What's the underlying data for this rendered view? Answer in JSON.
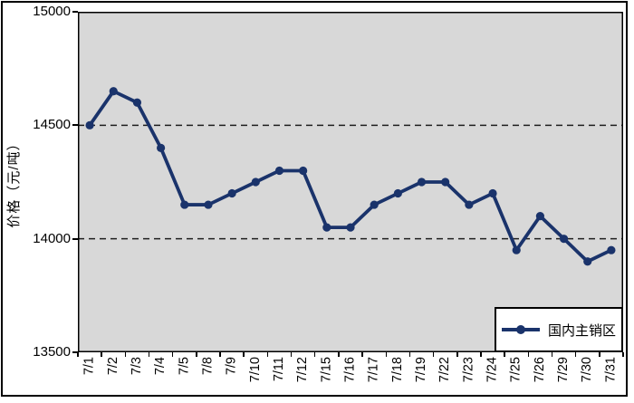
{
  "chart_data": {
    "type": "line",
    "ylabel": "价格（元/吨）",
    "xlabel": "",
    "categories": [
      "7/1",
      "7/2",
      "7/3",
      "7/4",
      "7/5",
      "7/8",
      "7/9",
      "7/10",
      "7/11",
      "7/12",
      "7/15",
      "7/16",
      "7/17",
      "7/18",
      "7/19",
      "7/22",
      "7/23",
      "7/24",
      "7/25",
      "7/26",
      "7/29",
      "7/30",
      "7/31"
    ],
    "series": [
      {
        "name": "国内主销区",
        "values": [
          14500,
          14650,
          14600,
          14400,
          14150,
          14150,
          14200,
          14250,
          14300,
          14300,
          14050,
          14050,
          14150,
          14200,
          14250,
          14250,
          14150,
          14200,
          13950,
          14100,
          14000,
          13900,
          13950
        ]
      }
    ],
    "ylim": [
      13500,
      15000
    ],
    "yticks": [
      13500,
      14000,
      14500,
      15000
    ],
    "gridlines_y": [
      14000,
      14500
    ],
    "grid": "dashed-horizontal",
    "legend": {
      "label": "国内主销区",
      "position": "inside-bottom-right",
      "marker": "filled-circle-on-line"
    }
  },
  "colors": {
    "series_line": "#1a336b",
    "plot_background": "#d8d8d8",
    "page_background": "#ffffff",
    "gridline": "#1f1f1f",
    "axis": "#000000"
  }
}
